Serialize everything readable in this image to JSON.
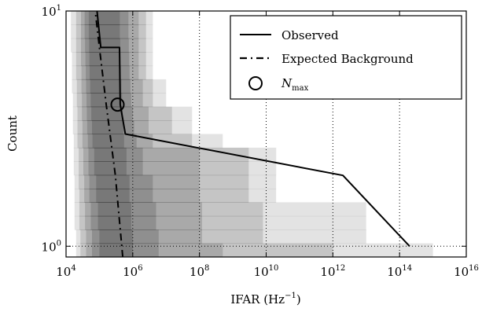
{
  "chart_data": {
    "type": "line",
    "xlabel": "IFAR (Hz",
    "xlabel_sup": "−1",
    "xlabel_close": ")",
    "ylabel": "Count",
    "xscale": "log",
    "yscale": "log",
    "xlim": [
      10000,
      1e+16
    ],
    "ylim": [
      0.9,
      10
    ],
    "x_ticks": [
      {
        "base": "10",
        "exp": "4",
        "value": 10000
      },
      {
        "base": "10",
        "exp": "6",
        "value": 1000000
      },
      {
        "base": "10",
        "exp": "8",
        "value": 100000000
      },
      {
        "base": "10",
        "exp": "10",
        "value": 10000000000
      },
      {
        "base": "10",
        "exp": "12",
        "value": 1000000000000
      },
      {
        "base": "10",
        "exp": "14",
        "value": 100000000000000
      },
      {
        "base": "10",
        "exp": "16",
        "value": 1e+16
      }
    ],
    "y_ticks": [
      {
        "base": "10",
        "exp": "0",
        "value": 1
      },
      {
        "base": "10",
        "exp": "1",
        "value": 10
      }
    ],
    "vlines_x": [
      1000000,
      100000000,
      10000000000,
      1000000000000,
      100000000000000
    ],
    "hline_y": 1,
    "legend_position": "top-right",
    "legend": {
      "observed": "Observed",
      "expected": "Expected Background",
      "nmax_main": "N",
      "nmax_sub": "max"
    },
    "bands": [
      {
        "opacity": 0.11,
        "x_left": [
          20000,
          20000,
          18000,
          18000,
          18000,
          18000,
          17000,
          17000,
          17000,
          16000,
          16000,
          16000,
          15000,
          15000,
          15000,
          14000,
          14000,
          14000
        ],
        "x_right": [
          1000000000000000,
          10000000000000,
          10000000000000,
          10000000000000,
          20000000000,
          20000000000,
          20000000000,
          20000000000,
          500000000,
          60000000,
          60000000,
          10000000,
          10000000,
          4000000,
          4000000,
          4000000,
          4000000,
          4000000
        ]
      },
      {
        "opacity": 0.13,
        "x_left": [
          27000,
          27000,
          25000,
          25000,
          25000,
          24000,
          24000,
          24000,
          22000,
          22000,
          22000,
          21000,
          21000,
          20000,
          20000,
          20000,
          20000,
          20000
        ],
        "x_right": [
          1000000000000,
          8000000000,
          8000000000,
          8000000000,
          3000000000,
          3000000000,
          3000000000,
          3000000000,
          60000000,
          15000000,
          15000000,
          4000000,
          4000000,
          2500000,
          2500000,
          2500000,
          2500000,
          2500000
        ]
      },
      {
        "opacity": 0.14,
        "x_left": [
          40000,
          40000,
          37000,
          37000,
          35000,
          35000,
          33000,
          33000,
          31000,
          31000,
          30000,
          30000,
          29000,
          29000,
          28000,
          28000,
          28000,
          28000
        ],
        "x_right": [
          500000000,
          120000000,
          120000000,
          120000000,
          100000000,
          100000000,
          100000000,
          100000000,
          4000000,
          3000000,
          3000000,
          2000000,
          2000000,
          1500000,
          1500000,
          1500000,
          1500000,
          1500000
        ]
      },
      {
        "opacity": 0.15,
        "x_left": [
          60000,
          60000,
          55000,
          55000,
          50000,
          50000,
          47000,
          47000,
          45000,
          43000,
          42000,
          41000,
          40000,
          39000,
          38000,
          37000,
          36000,
          36000
        ],
        "x_right": [
          6000000,
          6000000,
          5000000,
          5000000,
          4000000,
          4000000,
          2000000,
          2000000,
          1300000,
          1100000,
          1000000,
          900000,
          850000,
          800000,
          780000,
          760000,
          740000,
          740000
        ]
      },
      {
        "opacity": 0.16,
        "x_left": [
          100000,
          100000,
          90000,
          90000,
          80000,
          80000,
          70000,
          70000,
          62000,
          60000,
          57000,
          55000,
          53000,
          51000,
          50000,
          49000,
          48000,
          48000
        ],
        "x_right": [
          1000000,
          1000000,
          900000,
          900000,
          800000,
          800000,
          650000,
          650000,
          550000,
          520000,
          500000,
          480000,
          460000,
          440000,
          430000,
          420000,
          410000,
          410000
        ]
      }
    ],
    "series": [
      {
        "name": "Observed",
        "style": "solid",
        "points": [
          {
            "x": 200000000000000.0,
            "y": 1
          },
          {
            "x": 2000000000000,
            "y": 2
          },
          {
            "x": 600000,
            "y": 3
          },
          {
            "x": 420000,
            "y": 4
          },
          {
            "x": 400000,
            "y": 7
          },
          {
            "x": 110000,
            "y": 7
          },
          {
            "x": 85000,
            "y": 10
          }
        ]
      },
      {
        "name": "Expected Background",
        "style": "dashdot",
        "points": [
          {
            "x": 500000,
            "y": 0.9
          },
          {
            "x": 300000,
            "y": 2
          },
          {
            "x": 160000,
            "y": 4
          },
          {
            "x": 100000,
            "y": 7
          },
          {
            "x": 75000,
            "y": 10
          }
        ]
      }
    ],
    "marker": {
      "x": 350000,
      "y": 4
    }
  }
}
